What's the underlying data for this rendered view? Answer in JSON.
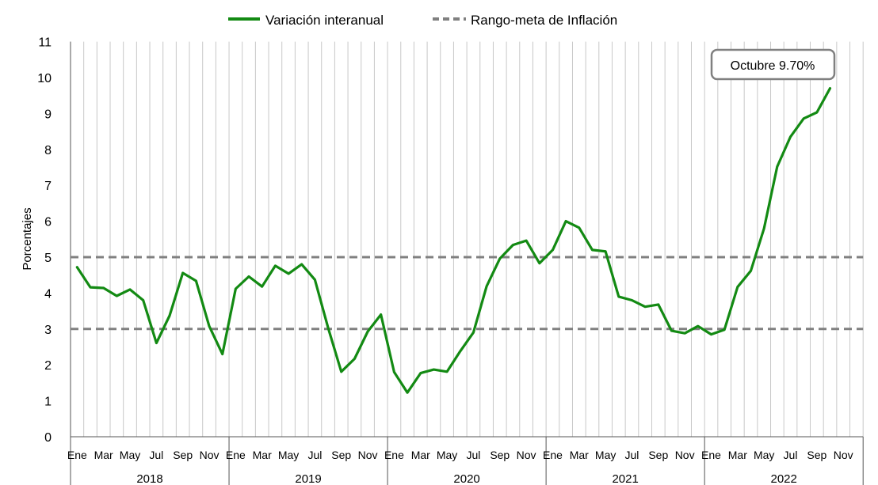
{
  "chart_data": {
    "type": "line",
    "ylabel": "Porcentajes",
    "ylim": [
      0,
      11
    ],
    "yticks": [
      "0",
      "1",
      "2",
      "3",
      "4",
      "5",
      "6",
      "7",
      "8",
      "9",
      "10",
      "11"
    ],
    "grid": "vertical",
    "legend_position": "top",
    "month_tick_labels": [
      "Ene",
      "Mar",
      "May",
      "Jul",
      "Sep",
      "Nov"
    ],
    "years": [
      "2018",
      "2019",
      "2020",
      "2021",
      "2022"
    ],
    "start_month": "2018-01",
    "series": [
      {
        "name": "Variación interanual",
        "color": "#138a13",
        "values": [
          4.72,
          4.16,
          4.14,
          3.92,
          4.1,
          3.8,
          2.61,
          3.37,
          4.56,
          4.34,
          3.08,
          2.3,
          4.12,
          4.46,
          4.18,
          4.76,
          4.54,
          4.8,
          4.37,
          3.03,
          1.81,
          2.17,
          2.93,
          3.4,
          1.8,
          1.23,
          1.77,
          1.87,
          1.81,
          2.38,
          2.9,
          4.19,
          4.96,
          5.34,
          5.46,
          4.83,
          5.2,
          6.0,
          5.82,
          5.2,
          5.16,
          3.9,
          3.8,
          3.62,
          3.68,
          2.95,
          2.88,
          3.08,
          2.85,
          2.98,
          4.17,
          4.62,
          5.8,
          7.52,
          8.35,
          8.86,
          9.03,
          9.7
        ]
      },
      {
        "name": "Rango-meta de Inflación",
        "color": "#808080",
        "dashed": true,
        "bounds": [
          3,
          5
        ]
      }
    ],
    "annotation": "Octubre 9.70%"
  }
}
